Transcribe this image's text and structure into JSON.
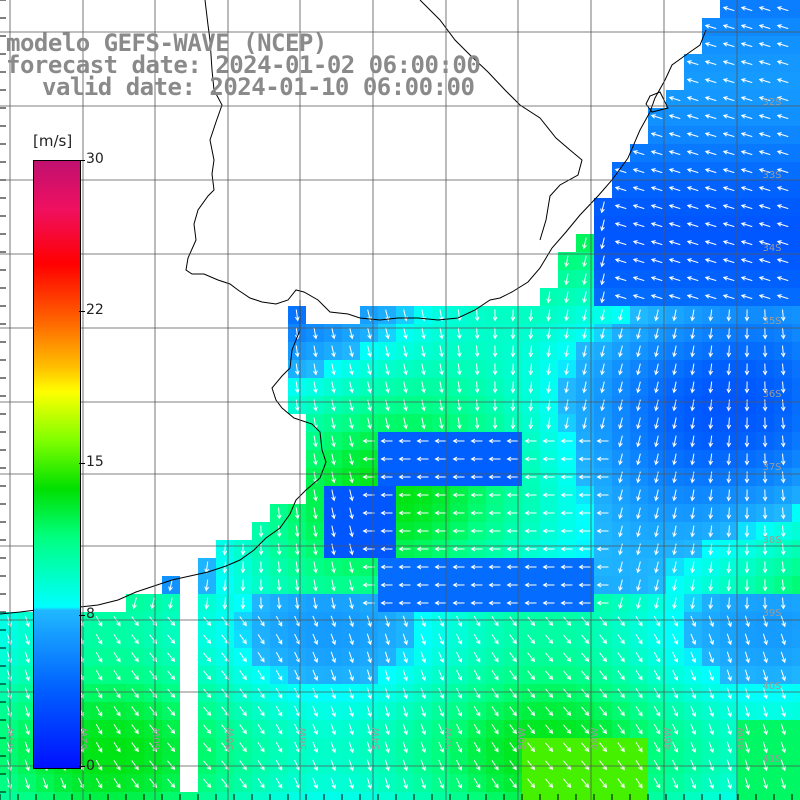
{
  "header": {
    "line1": "modelo GEFS-WAVE (NCEP)",
    "line2": "forecast date: 2024-01-02 06:00:00",
    "line3": "valid date: 2024-01-10 06:00:00"
  },
  "legend": {
    "unit": "[m/s]",
    "ticks": [
      {
        "label": "30",
        "value": 30
      },
      {
        "label": "22",
        "value": 22
      },
      {
        "label": "15",
        "value": 15
      },
      {
        "label": "8",
        "value": 8
      },
      {
        "label": "0",
        "value": 0
      }
    ]
  },
  "lat_labels": [
    "32S",
    "33S",
    "34S",
    "35S",
    "36S",
    "37S",
    "38S",
    "39S",
    "40S",
    "41S"
  ],
  "lon_labels": [
    "65W",
    "62W",
    "60W",
    "58W",
    "56W",
    "54W",
    "52W",
    "50W",
    "48W",
    "46W",
    "44W"
  ],
  "colors": {
    "land": "#ffffff",
    "coast": "#000000",
    "grid": "#555555",
    "arrows": "#ffffff"
  }
}
